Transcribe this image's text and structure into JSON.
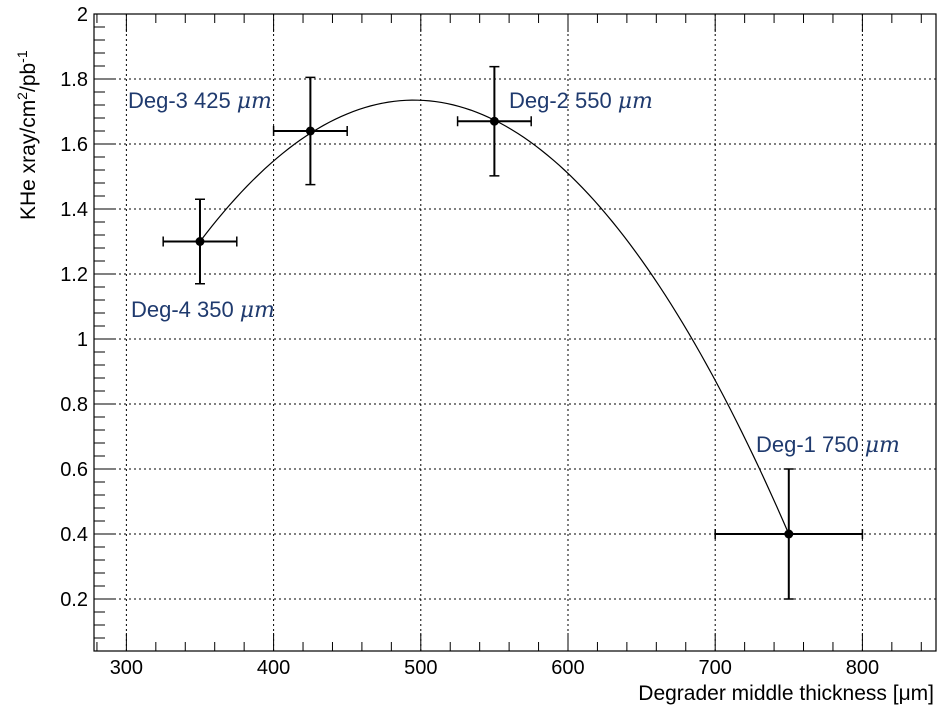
{
  "chart_data": {
    "type": "scatter",
    "xlabel": "Degrader middle thickness [μm]",
    "ylabel_main": "KHe xray/cm",
    "ylabel_sup1": "2",
    "ylabel_mid": "/pb",
    "ylabel_sup2": "-1",
    "xlim": [
      278,
      850
    ],
    "ylim": [
      0.04,
      2.0
    ],
    "x_ticks": [
      300,
      400,
      500,
      600,
      700,
      800
    ],
    "x_tick_labels": [
      "300",
      "400",
      "500",
      "600",
      "700",
      "800"
    ],
    "y_ticks": [
      0.2,
      0.4,
      0.6,
      0.8,
      1.0,
      1.2,
      1.4,
      1.6,
      1.8,
      2.0
    ],
    "y_tick_labels": [
      "0.2",
      "0.4",
      "0.6",
      "0.8",
      "1",
      "1.2",
      "1.4",
      "1.6",
      "1.8",
      "2"
    ],
    "grid": true,
    "points": [
      {
        "x": 350,
        "y": 1.3,
        "xerr": 25,
        "yerr": 0.13
      },
      {
        "x": 425,
        "y": 1.64,
        "xerr": 25,
        "yerr": 0.165
      },
      {
        "x": 550,
        "y": 1.67,
        "xerr": 25,
        "yerr": 0.168
      },
      {
        "x": 750,
        "y": 0.4,
        "xerr": 50,
        "yerr": 0.2
      }
    ],
    "fit_curve": {
      "type": "quadratic",
      "x_range": [
        350,
        750
      ],
      "points": [
        [
          350,
          1.3
        ],
        [
          425,
          1.64
        ],
        [
          495,
          1.735
        ],
        [
          550,
          1.67
        ],
        [
          650,
          1.22
        ],
        [
          750,
          0.4
        ]
      ]
    },
    "annotations": [
      {
        "label": "Deg-3 425",
        "unit": "μm"
      },
      {
        "label": "Deg-2 550",
        "unit": "μm"
      },
      {
        "label": "Deg-4 350",
        "unit": "μm"
      },
      {
        "label": "Deg-1 750",
        "unit": "μm"
      }
    ],
    "annotation_color": "#1f3a6e"
  }
}
